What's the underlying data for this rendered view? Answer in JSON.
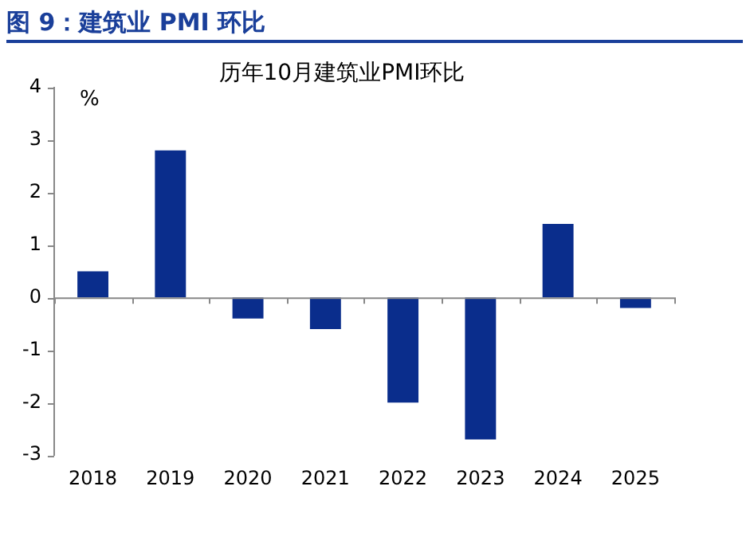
{
  "chart_data": {
    "type": "bar",
    "title": "图 9：建筑业 PMI 环比",
    "subtitle": "历年10月建筑业PMI环比",
    "ylabel": "%",
    "categories": [
      "2018",
      "2019",
      "2020",
      "2021",
      "2022",
      "2023",
      "2024",
      "2025"
    ],
    "values": [
      0.5,
      2.8,
      -0.4,
      -0.6,
      -2.0,
      -2.7,
      1.4,
      -0.2
    ],
    "color": "#0a2d8c",
    "ylim": [
      -3,
      4
    ],
    "yticks": [
      -3,
      -2,
      -1,
      0,
      1,
      2,
      3,
      4
    ],
    "legend": false
  }
}
